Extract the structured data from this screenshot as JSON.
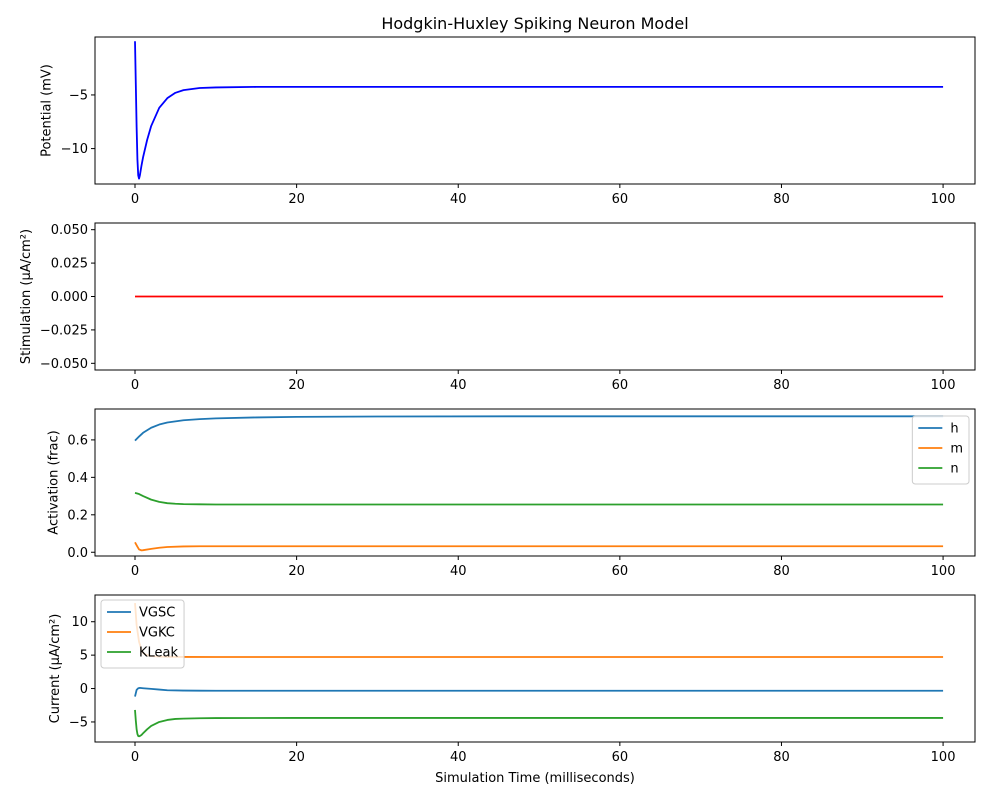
{
  "figure": {
    "title": "Hodgkin-Huxley Spiking Neuron Model",
    "xlabel": "Simulation Time (milliseconds)"
  },
  "chart_data": [
    {
      "type": "line",
      "ylabel": "Potential (mV)",
      "xlim": [
        -4.95,
        103.95
      ],
      "ylim": [
        -13.3,
        0.4
      ],
      "x_ticks": [
        0,
        20,
        40,
        60,
        80,
        100
      ],
      "y_ticks": [
        -10,
        -5
      ],
      "x_tick_labels": [
        "0",
        "20",
        "40",
        "60",
        "80",
        "100"
      ],
      "y_tick_labels": [
        "−10",
        "−5"
      ],
      "legend": null,
      "series": [
        {
          "color": "#0000ff",
          "x": [
            0,
            0.1,
            0.2,
            0.3,
            0.4,
            0.5,
            0.6,
            0.8,
            1,
            1.5,
            2,
            3,
            4,
            5,
            6,
            8,
            10,
            15,
            20,
            30,
            50,
            100
          ],
          "y": [
            0,
            -4,
            -8,
            -11,
            -12.5,
            -12.8,
            -12.5,
            -11.6,
            -10.8,
            -9.2,
            -7.9,
            -6.2,
            -5.3,
            -4.8,
            -4.55,
            -4.35,
            -4.3,
            -4.25,
            -4.25,
            -4.25,
            -4.25,
            -4.25
          ]
        }
      ]
    },
    {
      "type": "line",
      "ylabel": "Stimulation (μA/cm²)",
      "xlim": [
        -4.95,
        103.95
      ],
      "ylim": [
        -0.055,
        0.055
      ],
      "x_ticks": [
        0,
        20,
        40,
        60,
        80,
        100
      ],
      "y_ticks": [
        -0.05,
        -0.025,
        0,
        0.025,
        0.05
      ],
      "x_tick_labels": [
        "0",
        "20",
        "40",
        "60",
        "80",
        "100"
      ],
      "y_tick_labels": [
        "−0.050",
        "−0.025",
        "0.000",
        "0.025",
        "0.050"
      ],
      "legend": null,
      "series": [
        {
          "color": "#ff0000",
          "x": [
            0,
            100
          ],
          "y": [
            0,
            0
          ]
        }
      ]
    },
    {
      "type": "line",
      "ylabel": "Activation (frac)",
      "xlim": [
        -4.95,
        103.95
      ],
      "ylim": [
        -0.02,
        0.765
      ],
      "x_ticks": [
        0,
        20,
        40,
        60,
        80,
        100
      ],
      "y_ticks": [
        0,
        0.2,
        0.4,
        0.6
      ],
      "x_tick_labels": [
        "0",
        "20",
        "40",
        "60",
        "80",
        "100"
      ],
      "y_tick_labels": [
        "0.0",
        "0.2",
        "0.4",
        "0.6"
      ],
      "legend": "right",
      "series": [
        {
          "name": "h",
          "color": "#1f77b4",
          "x": [
            0,
            0.5,
            1,
            2,
            3,
            4,
            6,
            8,
            10,
            15,
            20,
            30,
            50,
            100
          ],
          "y": [
            0.596,
            0.618,
            0.638,
            0.665,
            0.682,
            0.693,
            0.705,
            0.711,
            0.715,
            0.72,
            0.723,
            0.725,
            0.726,
            0.726
          ]
        },
        {
          "name": "m",
          "color": "#ff7f0e",
          "x": [
            0,
            0.3,
            0.5,
            0.8,
            1,
            2,
            3,
            4,
            6,
            8,
            10,
            20,
            50,
            100
          ],
          "y": [
            0.053,
            0.03,
            0.015,
            0.01,
            0.011,
            0.018,
            0.024,
            0.028,
            0.031,
            0.032,
            0.032,
            0.032,
            0.032,
            0.032
          ]
        },
        {
          "name": "n",
          "color": "#2ca02c",
          "x": [
            0,
            0.5,
            1,
            2,
            3,
            4,
            5,
            6,
            8,
            10,
            20,
            50,
            100
          ],
          "y": [
            0.317,
            0.311,
            0.3,
            0.281,
            0.269,
            0.262,
            0.259,
            0.257,
            0.256,
            0.255,
            0.255,
            0.255,
            0.255
          ]
        }
      ]
    },
    {
      "type": "line",
      "ylabel": "Current (μA/cm²)",
      "xlim": [
        -4.95,
        103.95
      ],
      "ylim": [
        -8,
        14
      ],
      "x_ticks": [
        0,
        20,
        40,
        60,
        80,
        100
      ],
      "y_ticks": [
        -5,
        0,
        5,
        10
      ],
      "x_tick_labels": [
        "0",
        "20",
        "40",
        "60",
        "80",
        "100"
      ],
      "y_tick_labels": [
        "−5",
        "0",
        "5",
        "10"
      ],
      "legend": "upper left",
      "series": [
        {
          "name": "VGSC",
          "color": "#1f77b4",
          "x": [
            0,
            0.2,
            0.4,
            0.6,
            1,
            2,
            3,
            4,
            6,
            8,
            10,
            20,
            50,
            100
          ],
          "y": [
            -1.2,
            -0.2,
            0.05,
            0.1,
            0.05,
            -0.05,
            -0.15,
            -0.25,
            -0.3,
            -0.32,
            -0.33,
            -0.33,
            -0.33,
            -0.33
          ]
        },
        {
          "name": "VGKC",
          "color": "#ff7f0e",
          "x": [
            0,
            0.2,
            0.5,
            0.8,
            1,
            1.5,
            2,
            3,
            4,
            6,
            10,
            20,
            50,
            100
          ],
          "y": [
            12.8,
            9.5,
            7,
            5.8,
            5.3,
            5,
            4.85,
            4.78,
            4.75,
            4.73,
            4.72,
            4.72,
            4.72,
            4.72
          ]
        },
        {
          "name": "KLeak",
          "color": "#2ca02c",
          "x": [
            0,
            0.1,
            0.2,
            0.3,
            0.4,
            0.5,
            0.6,
            0.8,
            1,
            1.5,
            2,
            3,
            4,
            5,
            6,
            8,
            10,
            20,
            50,
            100
          ],
          "y": [
            -3.2,
            -4.8,
            -6.1,
            -6.8,
            -7.1,
            -7.15,
            -7.1,
            -6.95,
            -6.7,
            -6.1,
            -5.6,
            -5,
            -4.7,
            -4.55,
            -4.5,
            -4.45,
            -4.42,
            -4.4,
            -4.4,
            -4.4
          ]
        }
      ]
    }
  ]
}
